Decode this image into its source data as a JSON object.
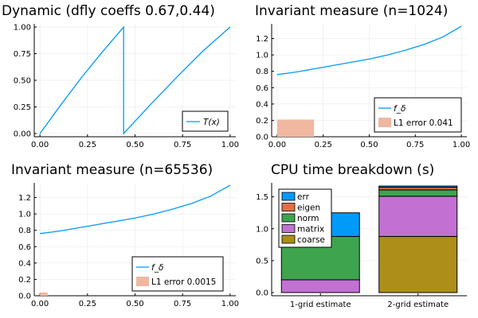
{
  "chart_data": [
    {
      "type": "line",
      "title": "Dynamic (dfly coeffs 0.67,0.44)",
      "x_ticks": [
        "0.00",
        "0.25",
        "0.50",
        "0.75",
        "1.00"
      ],
      "y_ticks": [
        "0.00",
        "0.25",
        "0.50",
        "0.75",
        "1.00"
      ],
      "xlim": [
        -0.03,
        1.03
      ],
      "ylim": [
        -0.03,
        1.03
      ],
      "legend_position": "bottom-right",
      "series": [
        {
          "name": "T(x)",
          "x": [
            0,
            0.11,
            0.22,
            0.33,
            0.44,
            0.44,
            0.58,
            0.72,
            0.86,
            1.0
          ],
          "y": [
            0,
            0.27,
            0.53,
            0.77,
            1.0,
            0,
            0.27,
            0.53,
            0.78,
            1.0
          ]
        }
      ]
    },
    {
      "type": "line",
      "title": "Invariant measure (n=1024)",
      "x_ticks": [
        "0.00",
        "0.25",
        "0.50",
        "0.75",
        "1.00"
      ],
      "y_ticks": [
        "0.0",
        "0.2",
        "0.4",
        "0.6",
        "0.8",
        "1.0",
        "1.2"
      ],
      "xlim": [
        -0.03,
        1.03
      ],
      "ylim": [
        0,
        1.38
      ],
      "legend_position": "bottom-right",
      "series": [
        {
          "name": "f_δ",
          "x": [
            0,
            0.1,
            0.2,
            0.3,
            0.4,
            0.5,
            0.6,
            0.7,
            0.8,
            0.9,
            1.0
          ],
          "y": [
            0.76,
            0.79,
            0.83,
            0.87,
            0.91,
            0.95,
            1.0,
            1.06,
            1.13,
            1.22,
            1.35
          ]
        }
      ],
      "error_bar": {
        "label": "L1 error 0.041",
        "x": [
          0,
          0.2
        ],
        "height": 0.21
      }
    },
    {
      "type": "line",
      "title": "Invariant measure (n=65536)",
      "x_ticks": [
        "0.00",
        "0.25",
        "0.50",
        "0.75",
        "1.00"
      ],
      "y_ticks": [
        "0.0",
        "0.2",
        "0.4",
        "0.6",
        "0.8",
        "1.0",
        "1.2"
      ],
      "xlim": [
        -0.03,
        1.03
      ],
      "ylim": [
        0,
        1.38
      ],
      "legend_position": "bottom-right",
      "series": [
        {
          "name": "f_δ",
          "x": [
            0,
            0.1,
            0.2,
            0.3,
            0.4,
            0.5,
            0.6,
            0.7,
            0.8,
            0.9,
            1.0
          ],
          "y": [
            0.76,
            0.79,
            0.83,
            0.87,
            0.91,
            0.95,
            1.0,
            1.06,
            1.13,
            1.22,
            1.35
          ]
        }
      ],
      "error_bar": {
        "label": "L1 error 0.0015",
        "x": [
          0,
          0.04
        ],
        "height": 0.04
      }
    },
    {
      "type": "bar",
      "stacked": true,
      "title": "CPU time breakdown (s)",
      "categories": [
        "1-grid estimate",
        "2-grid estimate"
      ],
      "y_ticks": [
        "0.0",
        "0.5",
        "1.0",
        "1.5"
      ],
      "ylim": [
        -0.05,
        1.72
      ],
      "legend_position": "top-left",
      "series": [
        {
          "name": "coarse",
          "color": "#ac8e18",
          "values": [
            0.0,
            0.88
          ]
        },
        {
          "name": "matrix",
          "color": "#c271d2",
          "values": [
            0.2,
            0.63
          ]
        },
        {
          "name": "norm",
          "color": "#3ea44e",
          "values": [
            0.68,
            0.1
          ]
        },
        {
          "name": "eigen",
          "color": "#e26f46",
          "values": [
            0.0,
            0.04
          ]
        },
        {
          "name": "err",
          "color": "#009af9",
          "values": [
            0.37,
            0.02
          ]
        }
      ]
    }
  ],
  "colors": {
    "line": "#009af9",
    "error_bar": "#f0b7a1"
  }
}
